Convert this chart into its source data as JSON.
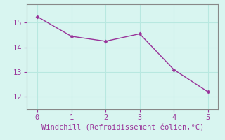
{
  "x": [
    0,
    1,
    2,
    3,
    4,
    5
  ],
  "y": [
    15.25,
    14.45,
    14.25,
    14.55,
    13.1,
    12.2
  ],
  "line_color": "#993399",
  "marker": "D",
  "marker_size": 2.5,
  "background_color": "#d8f5f0",
  "grid_color": "#b8e8e0",
  "xlabel": "Windchill (Refroidissement éolien,°C)",
  "xlabel_color": "#993399",
  "tick_color": "#993399",
  "spine_color": "#888888",
  "xlim": [
    -0.3,
    5.3
  ],
  "ylim": [
    11.5,
    15.75
  ],
  "xticks": [
    0,
    1,
    2,
    3,
    4,
    5
  ],
  "yticks": [
    12,
    13,
    14,
    15
  ],
  "xlabel_fontsize": 7.5,
  "tick_fontsize": 7.5,
  "linewidth": 1.0
}
